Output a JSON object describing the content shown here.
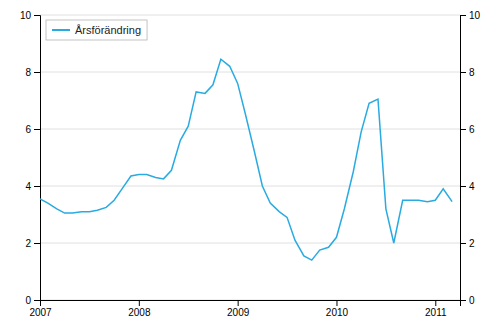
{
  "chart_data": {
    "type": "line",
    "x": [
      2007.0,
      2007.08,
      2007.17,
      2007.25,
      2007.33,
      2007.42,
      2007.5,
      2007.58,
      2007.67,
      2007.75,
      2007.83,
      2007.92,
      2008.0,
      2008.08,
      2008.17,
      2008.25,
      2008.33,
      2008.42,
      2008.5,
      2008.58,
      2008.67,
      2008.75,
      2008.83,
      2008.92,
      2009.0,
      2009.08,
      2009.17,
      2009.25,
      2009.33,
      2009.42,
      2009.5,
      2009.58,
      2009.67,
      2009.75,
      2009.83,
      2009.92,
      2010.0,
      2010.08,
      2010.17,
      2010.25,
      2010.33,
      2010.42,
      2010.5,
      2010.58,
      2010.67,
      2010.75,
      2010.83,
      2010.92,
      2011.0,
      2011.08,
      2011.17
    ],
    "series": [
      {
        "name": "Årsförändring",
        "color": "#29abe2",
        "values": [
          3.55,
          3.4,
          3.2,
          3.05,
          3.05,
          3.1,
          3.1,
          3.15,
          3.25,
          3.5,
          3.9,
          4.35,
          4.4,
          4.4,
          4.3,
          4.25,
          4.55,
          5.6,
          6.1,
          7.3,
          7.25,
          7.55,
          8.45,
          8.2,
          7.6,
          6.5,
          5.2,
          4.0,
          3.4,
          3.1,
          2.9,
          2.1,
          1.55,
          1.4,
          1.75,
          1.85,
          2.2,
          3.2,
          4.5,
          5.9,
          6.9,
          7.05,
          3.2,
          2.0,
          3.5,
          3.5,
          3.5,
          3.45,
          3.5,
          3.9,
          3.45
        ]
      }
    ],
    "xlim": [
      2007.0,
      2011.25
    ],
    "xticks": [
      2007,
      2008,
      2009,
      2010,
      2011
    ],
    "ylim": [
      0,
      10
    ],
    "yticks": [
      0,
      2,
      4,
      6,
      8,
      10
    ],
    "y2lim": [
      0,
      10
    ],
    "y2ticks": [
      0,
      2,
      4,
      6,
      8,
      10
    ],
    "grid": true,
    "legend": "upper left"
  }
}
